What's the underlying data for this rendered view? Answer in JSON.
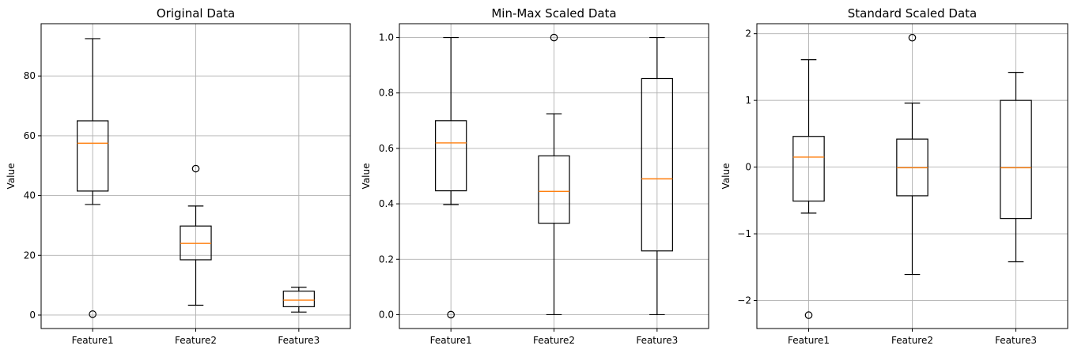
{
  "chart_data": [
    {
      "type": "box",
      "title": "Original Data",
      "ylabel": "Value",
      "categories": [
        "Feature1",
        "Feature2",
        "Feature3"
      ],
      "ylim": [
        -4.5,
        97.5
      ],
      "yticks": [
        0,
        20,
        40,
        60,
        80
      ],
      "ytick_labels": [
        "0",
        "20",
        "40",
        "60",
        "80"
      ],
      "grid": true,
      "boxes": [
        {
          "whisker_low": 37,
          "q1": 41.5,
          "median": 57.5,
          "q3": 65,
          "whisker_high": 92.5,
          "fliers": [
            0.3
          ]
        },
        {
          "whisker_low": 3.3,
          "q1": 18.5,
          "median": 24,
          "q3": 29.8,
          "whisker_high": 36.5,
          "fliers": [
            49
          ]
        },
        {
          "whisker_low": 1,
          "q1": 2.8,
          "median": 5,
          "q3": 8,
          "whisker_high": 9.3,
          "fliers": []
        }
      ]
    },
    {
      "type": "box",
      "title": "Min-Max Scaled Data",
      "ylabel": "Value",
      "categories": [
        "Feature1",
        "Feature2",
        "Feature3"
      ],
      "ylim": [
        -0.05,
        1.05
      ],
      "yticks": [
        0.0,
        0.2,
        0.4,
        0.6,
        0.8,
        1.0
      ],
      "ytick_labels": [
        "0.0",
        "0.2",
        "0.4",
        "0.6",
        "0.8",
        "1.0"
      ],
      "grid": true,
      "boxes": [
        {
          "whisker_low": 0.397,
          "q1": 0.447,
          "median": 0.62,
          "q3": 0.7,
          "whisker_high": 1.0,
          "fliers": [
            0.0
          ]
        },
        {
          "whisker_low": 0.0,
          "q1": 0.33,
          "median": 0.445,
          "q3": 0.573,
          "whisker_high": 0.725,
          "fliers": [
            1.0
          ]
        },
        {
          "whisker_low": 0.0,
          "q1": 0.23,
          "median": 0.49,
          "q3": 0.852,
          "whisker_high": 1.0,
          "fliers": []
        }
      ]
    },
    {
      "type": "box",
      "title": "Standard Scaled Data",
      "ylabel": "Value",
      "categories": [
        "Feature1",
        "Feature2",
        "Feature3"
      ],
      "ylim": [
        -2.42,
        2.15
      ],
      "yticks": [
        -2,
        -1,
        0,
        1,
        2
      ],
      "ytick_labels": [
        "−2",
        "−1",
        "0",
        "1",
        "2"
      ],
      "grid": true,
      "boxes": [
        {
          "whisker_low": -0.69,
          "q1": -0.51,
          "median": 0.15,
          "q3": 0.46,
          "whisker_high": 1.61,
          "fliers": [
            -2.22
          ]
        },
        {
          "whisker_low": -1.61,
          "q1": -0.43,
          "median": -0.01,
          "q3": 0.42,
          "whisker_high": 0.96,
          "fliers": [
            1.94
          ]
        },
        {
          "whisker_low": -1.42,
          "q1": -0.77,
          "median": -0.01,
          "q3": 1.0,
          "whisker_high": 1.42,
          "fliers": []
        }
      ]
    }
  ]
}
